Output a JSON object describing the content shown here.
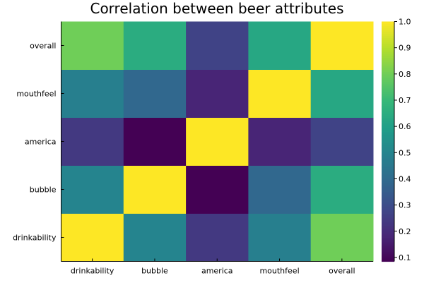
{
  "chart_data": {
    "type": "heatmap",
    "title": "Correlation between beer attributes",
    "x_categories": [
      "drinkability",
      "bubble",
      "america",
      "mouthfeel",
      "overall"
    ],
    "y_categories": [
      "drinkability",
      "bubble",
      "america",
      "mouthfeel",
      "overall"
    ],
    "values": [
      [
        1.0,
        0.5,
        0.24,
        0.48,
        0.8
      ],
      [
        0.5,
        1.0,
        0.085,
        0.39,
        0.65
      ],
      [
        0.24,
        0.085,
        1.0,
        0.18,
        0.27
      ],
      [
        0.48,
        0.39,
        0.18,
        1.0,
        0.63
      ],
      [
        0.8,
        0.65,
        0.27,
        0.63,
        1.0
      ]
    ],
    "colormap": "viridis",
    "clim": [
      0.085,
      1.0
    ],
    "colorbar_ticks": [
      "0.1",
      "0.2",
      "0.3",
      "0.4",
      "0.5",
      "0.6",
      "0.7",
      "0.8",
      "0.9",
      "1.0"
    ],
    "legend": "colorbar-right",
    "grid": false
  }
}
